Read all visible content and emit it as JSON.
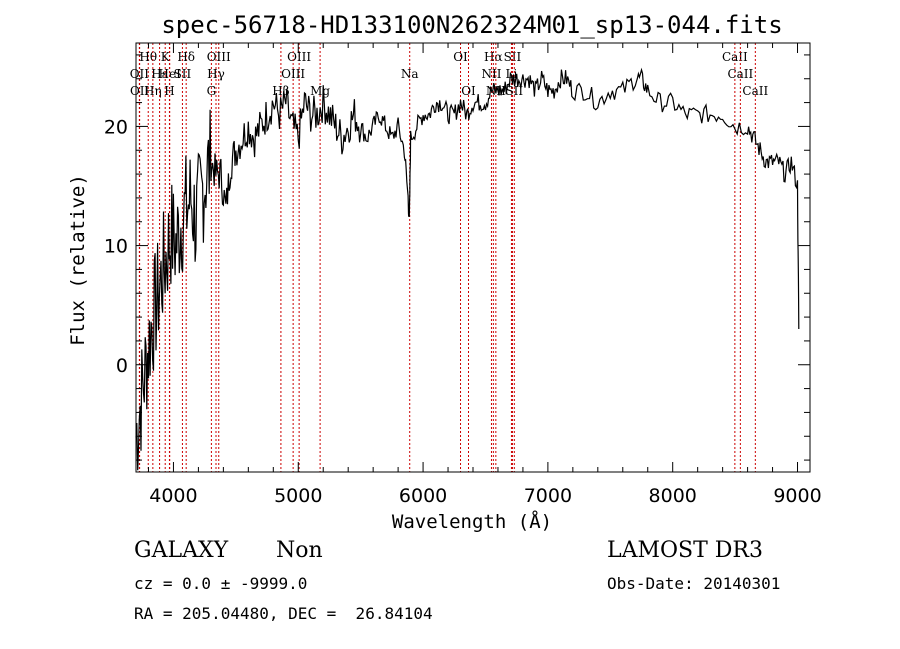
{
  "chart_data": {
    "type": "line",
    "title": "spec-56718-HD133100N262324M01_sp13-044.fits",
    "xlabel": "Wavelength (Å)",
    "ylabel": "Flux (relative)",
    "xlim": [
      3700,
      9100
    ],
    "ylim": [
      -9,
      27
    ],
    "xticks": [
      4000,
      5000,
      6000,
      7000,
      8000,
      9000
    ],
    "yticks": [
      0,
      10,
      20
    ],
    "grid": false,
    "line_color": "#000000",
    "marker_color": "#cc0000",
    "series": [
      {
        "x": [
          3700,
          3740,
          3780,
          3820,
          3860,
          3900,
          3940,
          3980,
          4020,
          4060,
          4100,
          4140,
          4180,
          4220,
          4260,
          4300,
          4340,
          4380,
          4420,
          4460,
          4500,
          4550,
          4600,
          4650,
          4700,
          4750,
          4800,
          4850,
          4900,
          4950,
          5000,
          5050,
          5100,
          5150,
          5200,
          5250,
          5300,
          5350,
          5400,
          5450,
          5500,
          5550,
          5600,
          5650,
          5700,
          5750,
          5800,
          5850,
          5880,
          5890,
          5900,
          5950,
          6000,
          6050,
          6100,
          6150,
          6200,
          6250,
          6300,
          6350,
          6400,
          6450,
          6500,
          6550,
          6600,
          6650,
          6700,
          6750,
          6800,
          6850,
          6900,
          6950,
          7000,
          7050,
          7100,
          7150,
          7200,
          7300,
          7400,
          7500,
          7600,
          7700,
          7750,
          7800,
          7900,
          8000,
          8100,
          8200,
          8300,
          8400,
          8500,
          8600,
          8650,
          8700,
          8750,
          8800,
          8850,
          8900,
          8950,
          9000,
          9010
        ],
        "y": [
          -6,
          -3,
          0,
          3,
          5,
          7,
          9,
          11,
          10,
          12,
          13,
          14,
          12,
          14,
          16,
          17,
          16,
          16,
          13,
          17,
          18,
          19,
          20,
          19,
          20,
          21,
          22,
          21,
          22,
          20,
          19,
          22,
          21,
          21,
          22,
          21,
          20,
          19,
          20,
          21,
          20,
          19,
          20,
          21,
          20,
          19,
          20,
          18,
          14,
          12,
          19,
          20,
          21,
          21,
          22,
          22,
          21,
          21,
          22,
          21,
          22,
          22,
          22,
          23,
          23,
          23,
          24,
          24,
          24,
          24,
          23,
          24,
          23,
          23,
          24,
          24,
          23,
          23,
          22,
          23,
          23,
          24,
          24,
          23,
          22,
          22,
          21,
          21,
          21,
          21,
          20,
          20,
          19,
          18,
          17,
          17,
          17,
          16,
          17,
          15,
          3
        ]
      }
    ],
    "lines": [
      {
        "name": "OII",
        "x": 3727,
        "row": 2
      },
      {
        "name": "OII",
        "x": 3729,
        "row": 3
      },
      {
        "name": "Hθ",
        "x": 3798,
        "row": 1
      },
      {
        "name": "Hη",
        "x": 3835,
        "row": 3
      },
      {
        "name": "Hε",
        "x": 3889,
        "row": 2
      },
      {
        "name": "K",
        "x": 3934,
        "row": 1
      },
      {
        "name": "HeI",
        "x": 3970,
        "row": 2
      },
      {
        "name": "H",
        "x": 3968,
        "row": 3
      },
      {
        "name": "Hδ",
        "x": 4102,
        "row": 1
      },
      {
        "name": "SII",
        "x": 4072,
        "row": 2
      },
      {
        "name": "OIII",
        "x": 4363,
        "row": 1
      },
      {
        "name": "Hγ",
        "x": 4341,
        "row": 2
      },
      {
        "name": "G",
        "x": 4304,
        "row": 3
      },
      {
        "name": "OIII",
        "x": 5007,
        "row": 1
      },
      {
        "name": "OIII",
        "x": 4959,
        "row": 2
      },
      {
        "name": "Hβ",
        "x": 4861,
        "row": 3
      },
      {
        "name": "Mg",
        "x": 5175,
        "row": 3
      },
      {
        "name": "Na",
        "x": 5893,
        "row": 2
      },
      {
        "name": "OI",
        "x": 6300,
        "row": 1
      },
      {
        "name": "OI",
        "x": 6364,
        "row": 3
      },
      {
        "name": "Hα",
        "x": 6563,
        "row": 1
      },
      {
        "name": "SII",
        "x": 6716,
        "row": 1
      },
      {
        "name": "NII",
        "x": 6548,
        "row": 2
      },
      {
        "name": "Li",
        "x": 6708,
        "row": 2
      },
      {
        "name": "NII",
        "x": 6583,
        "row": 3
      },
      {
        "name": "SII",
        "x": 6731,
        "row": 3
      },
      {
        "name": "CaII",
        "x": 8498,
        "row": 1
      },
      {
        "name": "CaII",
        "x": 8542,
        "row": 2
      },
      {
        "name": "CaII",
        "x": 8662,
        "row": 3
      }
    ]
  },
  "info": {
    "class": "GALAXY",
    "subclass": "Non",
    "survey": "LAMOST DR3",
    "cz": "cz = 0.0 ± -9999.0",
    "obs_date": "Obs-Date: 20140301",
    "coords": "RA = 205.04480, DEC =  26.84104"
  }
}
